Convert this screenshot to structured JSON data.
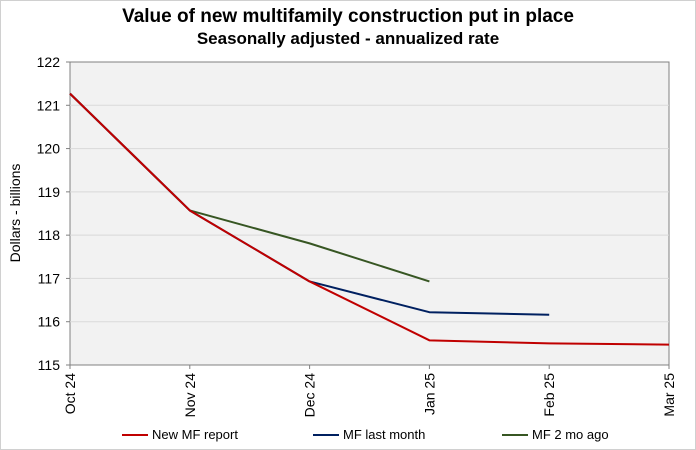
{
  "chart_data": {
    "type": "line",
    "title": "Value of new multifamily  construction put in place",
    "subtitle": "Seasonally adjusted - annualized rate",
    "xlabel": "",
    "ylabel": "Dollars - billions",
    "categories": [
      "Oct 24",
      "Nov 24",
      "Dec 24",
      "Jan 25",
      "Feb 25",
      "Mar 25"
    ],
    "ylim": [
      115,
      122
    ],
    "yticks": [
      "115",
      "116",
      "117",
      "118",
      "119",
      "120",
      "121",
      "122"
    ],
    "grid": true,
    "legend_position": "bottom",
    "series": [
      {
        "name": "New MF report",
        "color": "#c00000",
        "values": [
          121.27,
          118.57,
          116.93,
          115.57,
          115.5,
          115.47
        ]
      },
      {
        "name": "MF last month",
        "color": "#002060",
        "values": [
          121.27,
          118.57,
          116.93,
          116.22,
          116.16,
          null
        ]
      },
      {
        "name": "MF 2 mo ago",
        "color": "#375623",
        "values": [
          121.27,
          118.57,
          117.81,
          116.93,
          null,
          null
        ]
      }
    ]
  }
}
